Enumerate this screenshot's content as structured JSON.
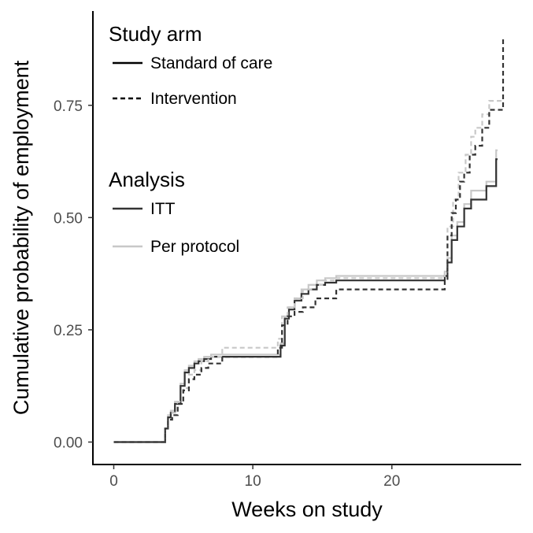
{
  "chart_data": {
    "type": "line",
    "step": true,
    "xlabel": "Weeks on study",
    "ylabel": "Cumulative probability of employment",
    "xlim": [
      -1.5,
      29.3
    ],
    "ylim": [
      -0.05,
      0.96
    ],
    "x_ticks": [
      0,
      10,
      20
    ],
    "x_tick_labels": [
      "0",
      "10",
      "20"
    ],
    "y_ticks": [
      0,
      0.25,
      0.5,
      0.75
    ],
    "y_tick_labels": [
      "0.00",
      "0.25",
      "0.50",
      "0.75"
    ],
    "grid": false,
    "legend_position": "top-left",
    "legends": [
      {
        "title": "Study arm",
        "entries": [
          {
            "label": "Standard of care",
            "dash": "solid",
            "color": "#000000"
          },
          {
            "label": "Intervention",
            "dash": "dashed",
            "color": "#000000"
          }
        ]
      },
      {
        "title": "Analysis",
        "entries": [
          {
            "label": "ITT",
            "dash": "solid",
            "color": "#333333"
          },
          {
            "label": "Per protocol",
            "dash": "solid",
            "color": "#c8c8c8"
          }
        ]
      }
    ],
    "series": [
      {
        "arm": "Standard of care",
        "analysis": "Per protocol",
        "color": "#c8c8c8",
        "dash": "solid",
        "x": [
          0,
          3.7,
          3.9,
          4.1,
          4.4,
          4.8,
          5.1,
          5.4,
          5.8,
          6.1,
          6.5,
          7.0,
          12.0,
          12.3,
          12.6,
          13.0,
          13.5,
          14.0,
          14.6,
          15.2,
          16.0,
          23.8,
          24.0,
          24.3,
          24.7,
          25.2,
          25.7,
          26.8,
          27.5,
          27.6
        ],
        "y": [
          0,
          0.03,
          0.06,
          0.07,
          0.09,
          0.13,
          0.16,
          0.17,
          0.18,
          0.185,
          0.19,
          0.195,
          0.22,
          0.28,
          0.3,
          0.32,
          0.34,
          0.35,
          0.36,
          0.365,
          0.37,
          0.38,
          0.41,
          0.46,
          0.49,
          0.53,
          0.56,
          0.58,
          0.65,
          0.65
        ]
      },
      {
        "arm": "Standard of care",
        "analysis": "ITT",
        "color": "#333333",
        "dash": "solid",
        "x": [
          0,
          3.7,
          3.9,
          4.1,
          4.4,
          4.8,
          5.1,
          5.4,
          5.8,
          6.1,
          6.5,
          7.0,
          12.0,
          12.3,
          12.6,
          13.0,
          13.5,
          14.0,
          14.6,
          15.2,
          16.0,
          23.8,
          24.0,
          24.3,
          24.7,
          25.2,
          25.7,
          26.8,
          27.5,
          27.6
        ],
        "y": [
          0,
          0.03,
          0.055,
          0.065,
          0.085,
          0.125,
          0.155,
          0.165,
          0.175,
          0.18,
          0.185,
          0.19,
          0.215,
          0.275,
          0.295,
          0.315,
          0.33,
          0.34,
          0.35,
          0.355,
          0.36,
          0.37,
          0.4,
          0.45,
          0.48,
          0.52,
          0.54,
          0.57,
          0.63,
          0.63
        ]
      },
      {
        "arm": "Intervention",
        "analysis": "Per protocol",
        "color": "#c8c8c8",
        "dash": "dashed",
        "x": [
          0,
          3.7,
          3.9,
          4.2,
          4.6,
          5.0,
          5.4,
          5.8,
          6.3,
          6.8,
          7.8,
          11.8,
          12.1,
          12.5,
          13.0,
          13.6,
          14.2,
          15.0,
          16.0,
          23.8,
          24.0,
          24.4,
          24.8,
          25.3,
          25.7,
          26.0,
          26.5,
          27.0,
          27.6,
          28.0
        ],
        "y": [
          0,
          0.03,
          0.05,
          0.065,
          0.09,
          0.12,
          0.15,
          0.16,
          0.18,
          0.19,
          0.21,
          0.23,
          0.28,
          0.3,
          0.32,
          0.34,
          0.35,
          0.36,
          0.365,
          0.38,
          0.48,
          0.54,
          0.6,
          0.64,
          0.68,
          0.7,
          0.73,
          0.76,
          0.76,
          0.76
        ]
      },
      {
        "arm": "Intervention",
        "analysis": "ITT",
        "color": "#333333",
        "dash": "dashed",
        "x": [
          0,
          3.7,
          3.9,
          4.2,
          4.6,
          5.0,
          5.4,
          5.8,
          6.3,
          6.8,
          7.8,
          11.8,
          12.1,
          12.5,
          13.0,
          13.6,
          14.5,
          16.0,
          23.8,
          24.0,
          24.3,
          24.6,
          24.9,
          25.2,
          25.6,
          26.0,
          26.5,
          27.0,
          27.6,
          28.0
        ],
        "y": [
          0,
          0.03,
          0.05,
          0.06,
          0.085,
          0.115,
          0.14,
          0.15,
          0.165,
          0.175,
          0.19,
          0.21,
          0.26,
          0.28,
          0.29,
          0.3,
          0.32,
          0.34,
          0.36,
          0.46,
          0.51,
          0.54,
          0.58,
          0.6,
          0.64,
          0.66,
          0.7,
          0.74,
          0.74,
          0.9
        ]
      }
    ]
  }
}
